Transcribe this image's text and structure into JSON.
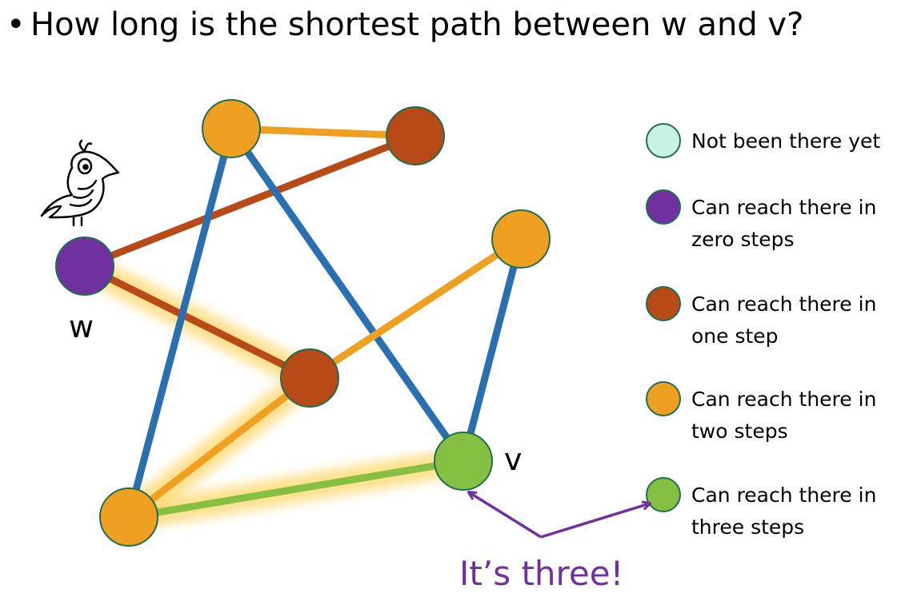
{
  "title": {
    "bullet": "•",
    "text": "How long is the shortest path between w and v?"
  },
  "graph": {
    "node_labels": {
      "w": "w",
      "v": "v"
    },
    "nodes": [
      {
        "id": "top-left",
        "state": "two"
      },
      {
        "id": "top-right",
        "state": "one"
      },
      {
        "id": "w",
        "state": "zero"
      },
      {
        "id": "right",
        "state": "two"
      },
      {
        "id": "middle",
        "state": "one"
      },
      {
        "id": "v",
        "state": "three"
      },
      {
        "id": "bottom-left",
        "state": "two"
      }
    ],
    "edges": [
      {
        "from": "top-left",
        "to": "top-right",
        "color": "orange"
      },
      {
        "from": "w",
        "to": "top-right",
        "color": "rust"
      },
      {
        "from": "w",
        "to": "middle",
        "color": "rust",
        "on_path": true
      },
      {
        "from": "top-left",
        "to": "bottom-left",
        "color": "blue"
      },
      {
        "from": "top-left",
        "to": "v",
        "color": "blue"
      },
      {
        "from": "middle",
        "to": "right",
        "color": "orange"
      },
      {
        "from": "right",
        "to": "v",
        "color": "blue"
      },
      {
        "from": "middle",
        "to": "bottom-left",
        "color": "orange",
        "on_path": true
      },
      {
        "from": "bottom-left",
        "to": "v",
        "color": "green",
        "on_path": true
      }
    ]
  },
  "legend": [
    {
      "state": "not-visited",
      "color": "#c8f2e4",
      "lines": [
        "Not been there yet"
      ]
    },
    {
      "state": "zero",
      "color": "#7030a0",
      "lines": [
        "Can reach there in",
        "zero steps"
      ]
    },
    {
      "state": "one",
      "color": "#b84a17",
      "lines": [
        "Can reach there in",
        "one step"
      ]
    },
    {
      "state": "two",
      "color": "#f0a020",
      "lines": [
        "Can reach there in",
        "two steps"
      ]
    },
    {
      "state": "three",
      "color": "#86c043",
      "lines": [
        "Can reach there in",
        "three steps"
      ]
    }
  ],
  "colors": {
    "orange": "#f0a020",
    "rust": "#b84a17",
    "blue": "#2a70b0",
    "green": "#86c043",
    "purple": "#7030a0",
    "highlight": "#ffd666",
    "node_outline": "#1f6e52",
    "answer": "#7030a0"
  },
  "bird_icon": "bird-icon",
  "answer": {
    "text": "It’s three!"
  }
}
